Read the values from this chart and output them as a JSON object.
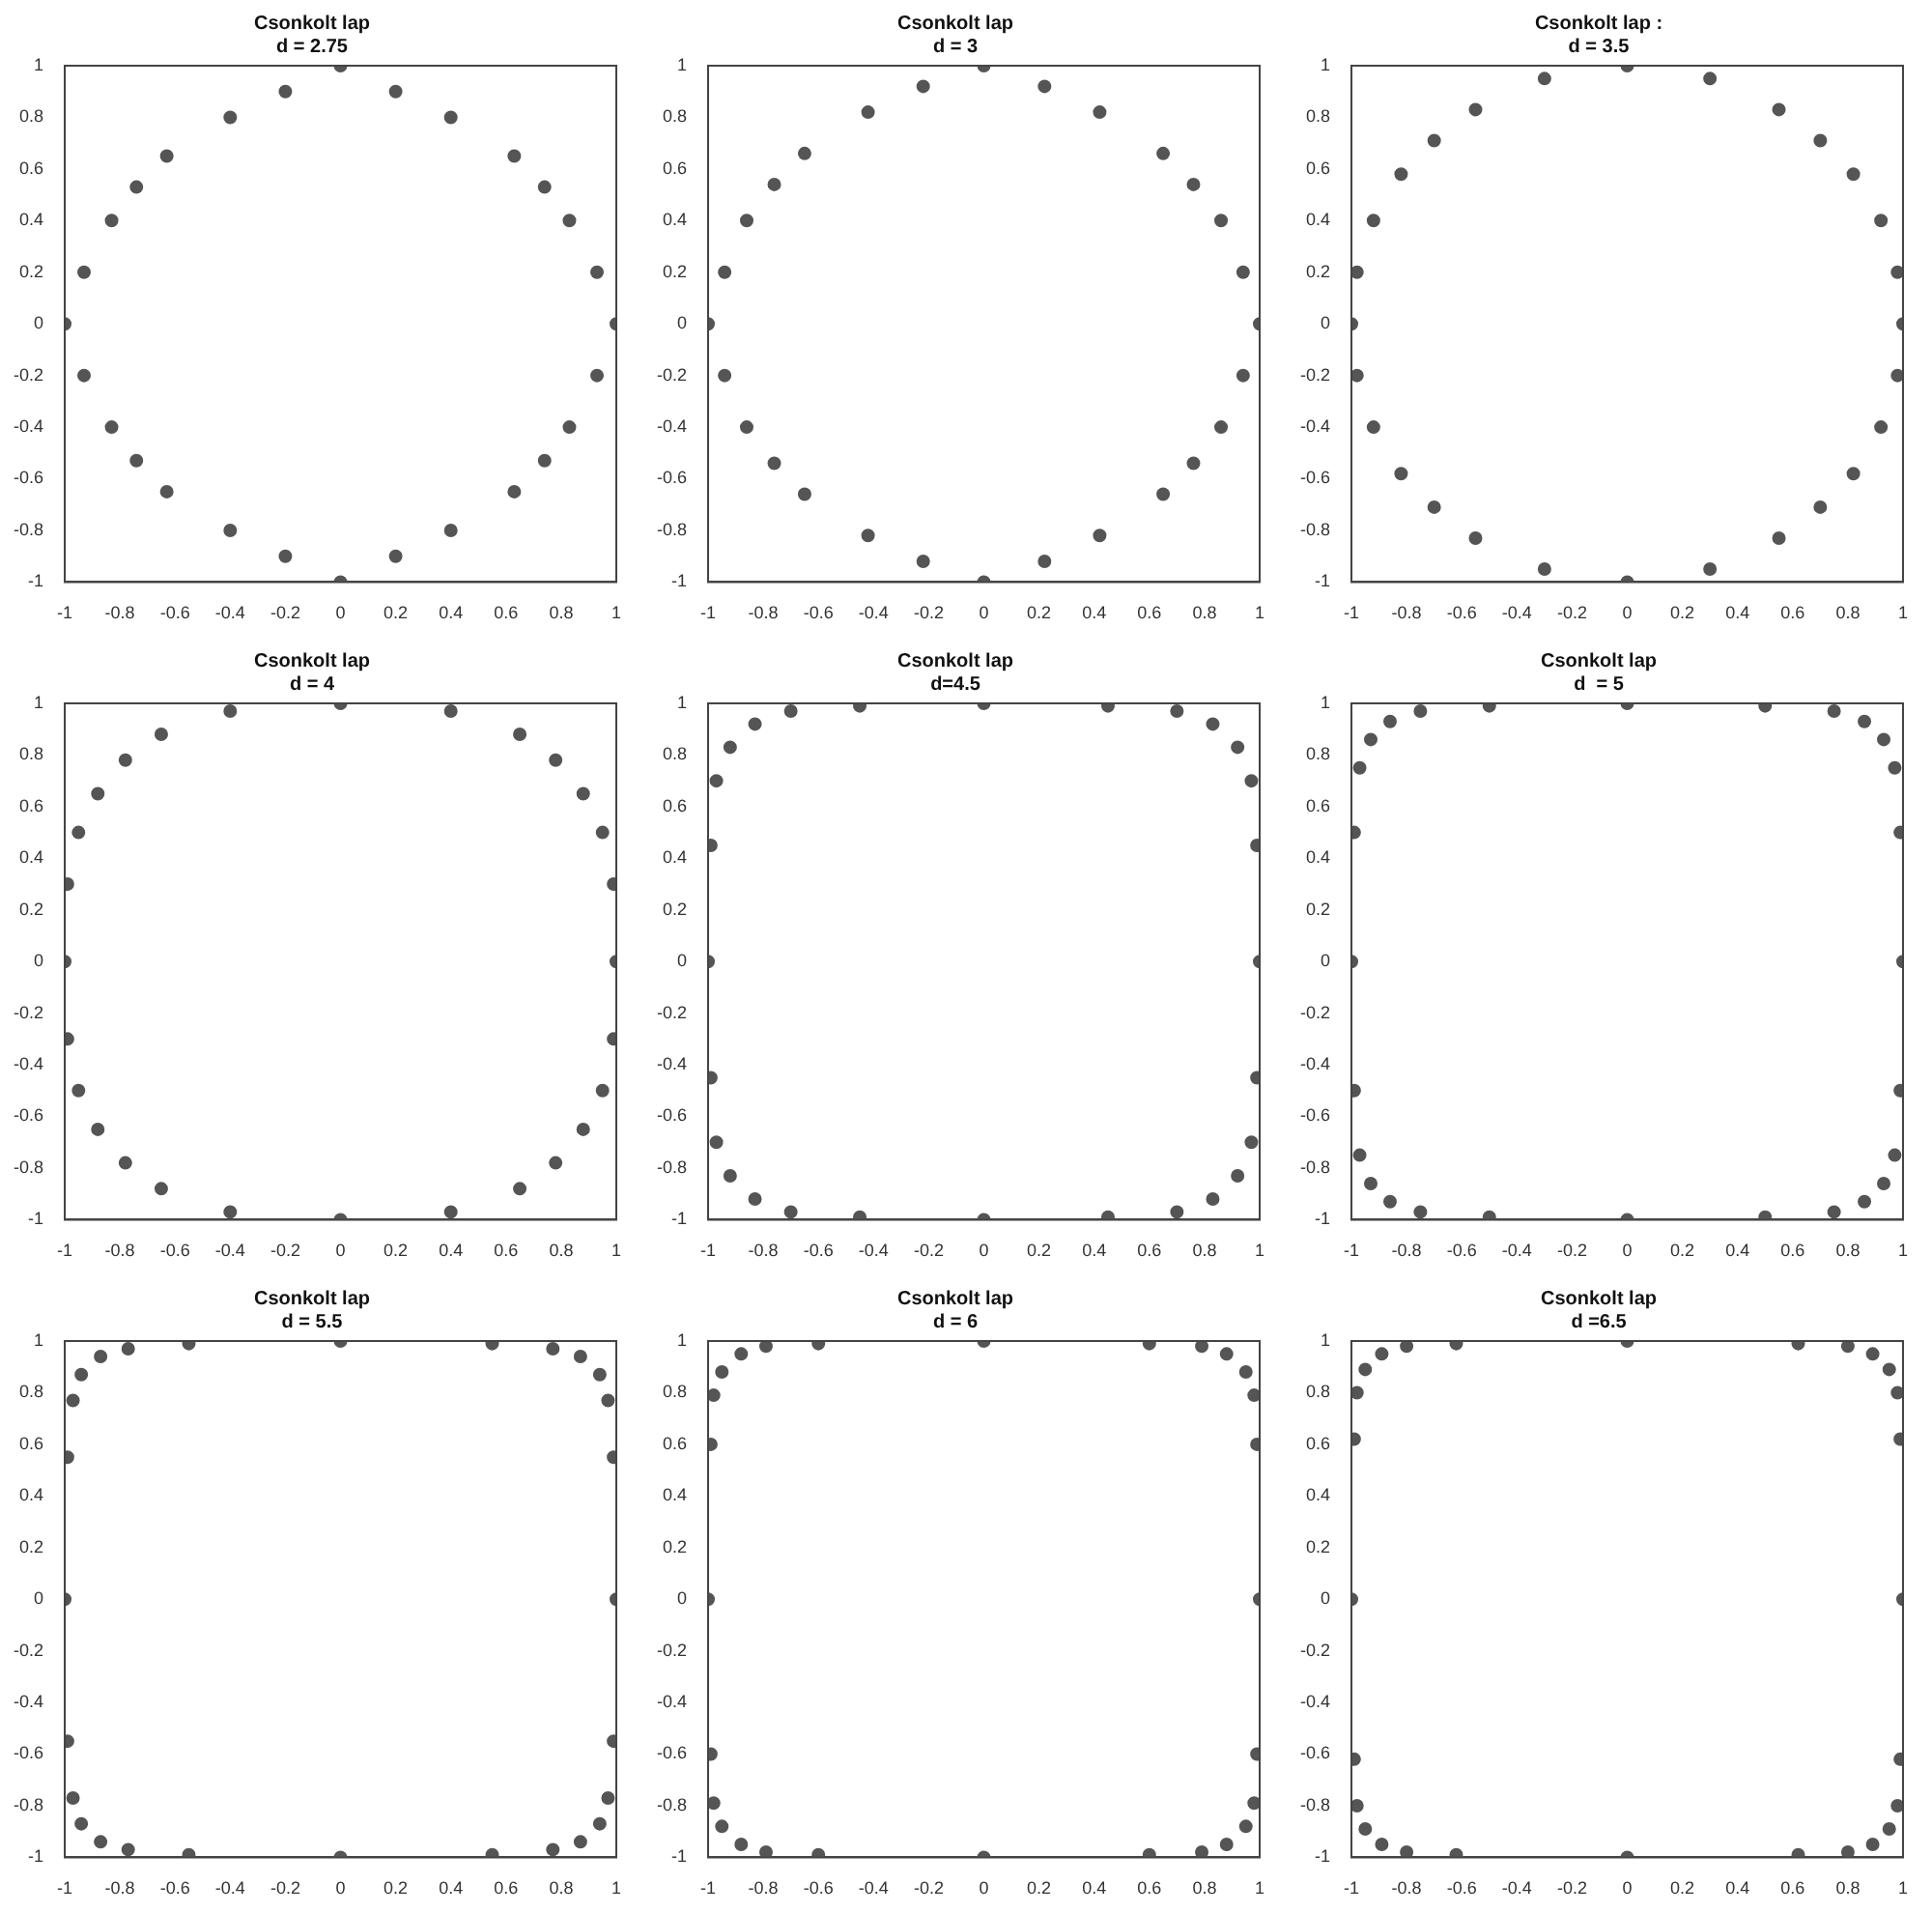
{
  "chart_data": [
    {
      "type": "scatter",
      "marker": "circle",
      "title": "Csonkolt lap",
      "subtitle": "d = 2.75",
      "xlim": [
        -1,
        1
      ],
      "ylim": [
        -1,
        1
      ],
      "xticks": [
        -1,
        -0.8,
        -0.6,
        -0.4,
        -0.2,
        0,
        0.2,
        0.4,
        0.6,
        0.8,
        1
      ],
      "yticks": [
        -1,
        -0.8,
        -0.6,
        -0.4,
        -0.2,
        0,
        0.2,
        0.4,
        0.6,
        0.8,
        1
      ],
      "legend": false,
      "grid": false,
      "series": [
        {
          "color": "#555555",
          "x": [
            1,
            0.93,
            0.83,
            0.74,
            0.63,
            0.4,
            0.2,
            0,
            -0.2,
            -0.4,
            -0.63,
            -0.74,
            -0.83,
            -0.93,
            -1,
            -0.93,
            -0.83,
            -0.74,
            -0.63,
            -0.4,
            -0.2,
            0,
            0.2,
            0.4,
            0.63,
            0.74,
            0.83,
            0.93
          ],
          "values": [
            0,
            0.2,
            0.4,
            0.53,
            0.65,
            0.8,
            0.9,
            1,
            0.9,
            0.8,
            0.65,
            0.53,
            0.4,
            0.2,
            0,
            -0.2,
            -0.4,
            -0.53,
            -0.65,
            -0.8,
            -0.9,
            -1,
            -0.9,
            -0.8,
            -0.65,
            -0.53,
            -0.4,
            -0.2
          ]
        }
      ]
    },
    {
      "type": "scatter",
      "marker": "circle",
      "title": "Csonkolt lap",
      "subtitle": "d = 3",
      "xlim": [
        -1,
        1
      ],
      "ylim": [
        -1,
        1
      ],
      "xticks": [
        -1,
        -0.8,
        -0.6,
        -0.4,
        -0.2,
        0,
        0.2,
        0.4,
        0.6,
        0.8,
        1
      ],
      "yticks": [
        -1,
        -0.8,
        -0.6,
        -0.4,
        -0.2,
        0,
        0.2,
        0.4,
        0.6,
        0.8,
        1
      ],
      "legend": false,
      "grid": false,
      "series": [
        {
          "color": "#555555",
          "x": [
            1,
            0.94,
            0.86,
            0.76,
            0.65,
            0.42,
            0.22,
            0,
            -0.22,
            -0.42,
            -0.65,
            -0.76,
            -0.86,
            -0.94,
            -1,
            -0.94,
            -0.86,
            -0.76,
            -0.65,
            -0.42,
            -0.22,
            0,
            0.22,
            0.42,
            0.65,
            0.76,
            0.86,
            0.94
          ],
          "values": [
            0,
            0.2,
            0.4,
            0.54,
            0.66,
            0.82,
            0.92,
            1,
            0.92,
            0.82,
            0.66,
            0.54,
            0.4,
            0.2,
            0,
            -0.2,
            -0.4,
            -0.54,
            -0.66,
            -0.82,
            -0.92,
            -1,
            -0.92,
            -0.82,
            -0.66,
            -0.54,
            -0.4,
            -0.2
          ]
        }
      ]
    },
    {
      "type": "scatter",
      "marker": "circle",
      "title": "Csonkolt lap :",
      "subtitle": "d = 3.5",
      "xlim": [
        -1,
        1
      ],
      "ylim": [
        -1,
        1
      ],
      "xticks": [
        -1,
        -0.8,
        -0.6,
        -0.4,
        -0.2,
        0,
        0.2,
        0.4,
        0.6,
        0.8,
        1
      ],
      "yticks": [
        -1,
        -0.8,
        -0.6,
        -0.4,
        -0.2,
        0,
        0.2,
        0.4,
        0.6,
        0.8,
        1
      ],
      "legend": false,
      "grid": false,
      "series": [
        {
          "color": "#555555",
          "x": [
            1,
            0.98,
            0.92,
            0.82,
            0.7,
            0.55,
            0.3,
            0,
            -0.3,
            -0.55,
            -0.7,
            -0.82,
            -0.92,
            -0.98,
            -1,
            -0.98,
            -0.92,
            -0.82,
            -0.7,
            -0.55,
            -0.3,
            0,
            0.3,
            0.55,
            0.7,
            0.82,
            0.92,
            0.98
          ],
          "values": [
            0,
            0.2,
            0.4,
            0.58,
            0.71,
            0.83,
            0.95,
            1,
            0.95,
            0.83,
            0.71,
            0.58,
            0.4,
            0.2,
            0,
            -0.2,
            -0.4,
            -0.58,
            -0.71,
            -0.83,
            -0.95,
            -1,
            -0.95,
            -0.83,
            -0.71,
            -0.58,
            -0.4,
            -0.2
          ]
        }
      ]
    },
    {
      "type": "scatter",
      "marker": "circle",
      "title": "Csonkolt lap",
      "subtitle": "d = 4",
      "xlim": [
        -1,
        1
      ],
      "ylim": [
        -1,
        1
      ],
      "xticks": [
        -1,
        -0.8,
        -0.6,
        -0.4,
        -0.2,
        0,
        0.2,
        0.4,
        0.6,
        0.8,
        1
      ],
      "yticks": [
        -1,
        -0.8,
        -0.6,
        -0.4,
        -0.2,
        0,
        0.2,
        0.4,
        0.6,
        0.8,
        1
      ],
      "legend": false,
      "grid": false,
      "series": [
        {
          "color": "#555555",
          "x": [
            1,
            0.99,
            0.95,
            0.88,
            0.78,
            0.65,
            0.4,
            0,
            -0.4,
            -0.65,
            -0.78,
            -0.88,
            -0.95,
            -0.99,
            -1,
            -0.99,
            -0.95,
            -0.88,
            -0.78,
            -0.65,
            -0.4,
            0,
            0.4,
            0.65,
            0.78,
            0.88,
            0.95,
            0.99
          ],
          "values": [
            0,
            0.3,
            0.5,
            0.65,
            0.78,
            0.88,
            0.97,
            1,
            0.97,
            0.88,
            0.78,
            0.65,
            0.5,
            0.3,
            0,
            -0.3,
            -0.5,
            -0.65,
            -0.78,
            -0.88,
            -0.97,
            -1,
            -0.97,
            -0.88,
            -0.78,
            -0.65,
            -0.5,
            -0.3
          ]
        }
      ]
    },
    {
      "type": "scatter",
      "marker": "circle",
      "title": "Csonkolt lap",
      "subtitle": "d=4.5",
      "xlim": [
        -1,
        1
      ],
      "ylim": [
        -1,
        1
      ],
      "xticks": [
        -1,
        -0.8,
        -0.6,
        -0.4,
        -0.2,
        0,
        0.2,
        0.4,
        0.6,
        0.8,
        1
      ],
      "yticks": [
        -1,
        -0.8,
        -0.6,
        -0.4,
        -0.2,
        0,
        0.2,
        0.4,
        0.6,
        0.8,
        1
      ],
      "legend": false,
      "grid": false,
      "series": [
        {
          "color": "#555555",
          "x": [
            1,
            0.99,
            0.97,
            0.92,
            0.83,
            0.7,
            0.45,
            0,
            -0.45,
            -0.7,
            -0.83,
            -0.92,
            -0.97,
            -0.99,
            -1,
            -0.99,
            -0.97,
            -0.92,
            -0.83,
            -0.7,
            -0.45,
            0,
            0.45,
            0.7,
            0.83,
            0.92,
            0.97,
            0.99
          ],
          "values": [
            0,
            0.45,
            0.7,
            0.83,
            0.92,
            0.97,
            0.99,
            1,
            0.99,
            0.97,
            0.92,
            0.83,
            0.7,
            0.45,
            0,
            -0.45,
            -0.7,
            -0.83,
            -0.92,
            -0.97,
            -0.99,
            -1,
            -0.99,
            -0.97,
            -0.92,
            -0.83,
            -0.7,
            -0.45
          ]
        }
      ]
    },
    {
      "type": "scatter",
      "marker": "circle",
      "title": "Csonkolt lap",
      "subtitle": "d  = 5",
      "xlim": [
        -1,
        1
      ],
      "ylim": [
        -1,
        1
      ],
      "xticks": [
        -1,
        -0.8,
        -0.6,
        -0.4,
        -0.2,
        0,
        0.2,
        0.4,
        0.6,
        0.8,
        1
      ],
      "yticks": [
        -1,
        -0.8,
        -0.6,
        -0.4,
        -0.2,
        0,
        0.2,
        0.4,
        0.6,
        0.8,
        1
      ],
      "legend": false,
      "grid": false,
      "series": [
        {
          "color": "#555555",
          "x": [
            1,
            0.99,
            0.97,
            0.93,
            0.86,
            0.75,
            0.5,
            0,
            -0.5,
            -0.75,
            -0.86,
            -0.93,
            -0.97,
            -0.99,
            -1,
            -0.99,
            -0.97,
            -0.93,
            -0.86,
            -0.75,
            -0.5,
            0,
            0.5,
            0.75,
            0.86,
            0.93,
            0.97,
            0.99
          ],
          "values": [
            0,
            0.5,
            0.75,
            0.86,
            0.93,
            0.97,
            0.99,
            1,
            0.99,
            0.97,
            0.93,
            0.86,
            0.75,
            0.5,
            0,
            -0.5,
            -0.75,
            -0.86,
            -0.93,
            -0.97,
            -0.99,
            -1,
            -0.99,
            -0.97,
            -0.93,
            -0.86,
            -0.75,
            -0.5
          ]
        }
      ]
    },
    {
      "type": "scatter",
      "marker": "circle",
      "title": "Csonkolt lap",
      "subtitle": "d = 5.5",
      "xlim": [
        -1,
        1
      ],
      "ylim": [
        -1,
        1
      ],
      "xticks": [
        -1,
        -0.8,
        -0.6,
        -0.4,
        -0.2,
        0,
        0.2,
        0.4,
        0.6,
        0.8,
        1
      ],
      "yticks": [
        -1,
        -0.8,
        -0.6,
        -0.4,
        -0.2,
        0,
        0.2,
        0.4,
        0.6,
        0.8,
        1
      ],
      "legend": false,
      "grid": false,
      "series": [
        {
          "color": "#555555",
          "x": [
            1,
            0.99,
            0.97,
            0.94,
            0.87,
            0.77,
            0.55,
            0,
            -0.55,
            -0.77,
            -0.87,
            -0.94,
            -0.97,
            -0.99,
            -1,
            -0.99,
            -0.97,
            -0.94,
            -0.87,
            -0.77,
            -0.55,
            0,
            0.55,
            0.77,
            0.87,
            0.94,
            0.97,
            0.99
          ],
          "values": [
            0,
            0.55,
            0.77,
            0.87,
            0.94,
            0.97,
            0.99,
            1,
            0.99,
            0.97,
            0.94,
            0.87,
            0.77,
            0.55,
            0,
            -0.55,
            -0.77,
            -0.87,
            -0.94,
            -0.97,
            -0.99,
            -1,
            -0.99,
            -0.97,
            -0.94,
            -0.87,
            -0.77,
            -0.55
          ]
        }
      ]
    },
    {
      "type": "scatter",
      "marker": "circle",
      "title": "Csonkolt lap",
      "subtitle": "d = 6",
      "xlim": [
        -1,
        1
      ],
      "ylim": [
        -1,
        1
      ],
      "xticks": [
        -1,
        -0.8,
        -0.6,
        -0.4,
        -0.2,
        0,
        0.2,
        0.4,
        0.6,
        0.8,
        1
      ],
      "yticks": [
        -1,
        -0.8,
        -0.6,
        -0.4,
        -0.2,
        0,
        0.2,
        0.4,
        0.6,
        0.8,
        1
      ],
      "legend": false,
      "grid": false,
      "series": [
        {
          "color": "#555555",
          "x": [
            1,
            0.99,
            0.98,
            0.95,
            0.88,
            0.79,
            0.6,
            0,
            -0.6,
            -0.79,
            -0.88,
            -0.95,
            -0.98,
            -0.99,
            -1,
            -0.99,
            -0.98,
            -0.95,
            -0.88,
            -0.79,
            -0.6,
            0,
            0.6,
            0.79,
            0.88,
            0.95,
            0.98,
            0.99
          ],
          "values": [
            0,
            0.6,
            0.79,
            0.88,
            0.95,
            0.98,
            0.99,
            1,
            0.99,
            0.98,
            0.95,
            0.88,
            0.79,
            0.6,
            0,
            -0.6,
            -0.79,
            -0.88,
            -0.95,
            -0.98,
            -0.99,
            -1,
            -0.99,
            -0.98,
            -0.95,
            -0.88,
            -0.79,
            -0.6
          ]
        }
      ]
    },
    {
      "type": "scatter",
      "marker": "circle",
      "title": "Csonkolt lap",
      "subtitle": "d =6.5",
      "xlim": [
        -1,
        1
      ],
      "ylim": [
        -1,
        1
      ],
      "xticks": [
        -1,
        -0.8,
        -0.6,
        -0.4,
        -0.2,
        0,
        0.2,
        0.4,
        0.6,
        0.8,
        1
      ],
      "yticks": [
        -1,
        -0.8,
        -0.6,
        -0.4,
        -0.2,
        0,
        0.2,
        0.4,
        0.6,
        0.8,
        1
      ],
      "legend": false,
      "grid": false,
      "series": [
        {
          "color": "#555555",
          "x": [
            1,
            0.99,
            0.98,
            0.95,
            0.89,
            0.8,
            0.62,
            0,
            -0.62,
            -0.8,
            -0.89,
            -0.95,
            -0.98,
            -0.99,
            -1,
            -0.99,
            -0.98,
            -0.95,
            -0.89,
            -0.8,
            -0.62,
            0,
            0.62,
            0.8,
            0.89,
            0.95,
            0.98,
            0.99
          ],
          "values": [
            0,
            0.62,
            0.8,
            0.89,
            0.95,
            0.98,
            0.99,
            1,
            0.99,
            0.98,
            0.95,
            0.89,
            0.8,
            0.62,
            0,
            -0.62,
            -0.8,
            -0.89,
            -0.95,
            -0.98,
            -0.99,
            -1,
            -0.99,
            -0.98,
            -0.95,
            -0.89,
            -0.8,
            -0.62
          ]
        }
      ]
    }
  ]
}
